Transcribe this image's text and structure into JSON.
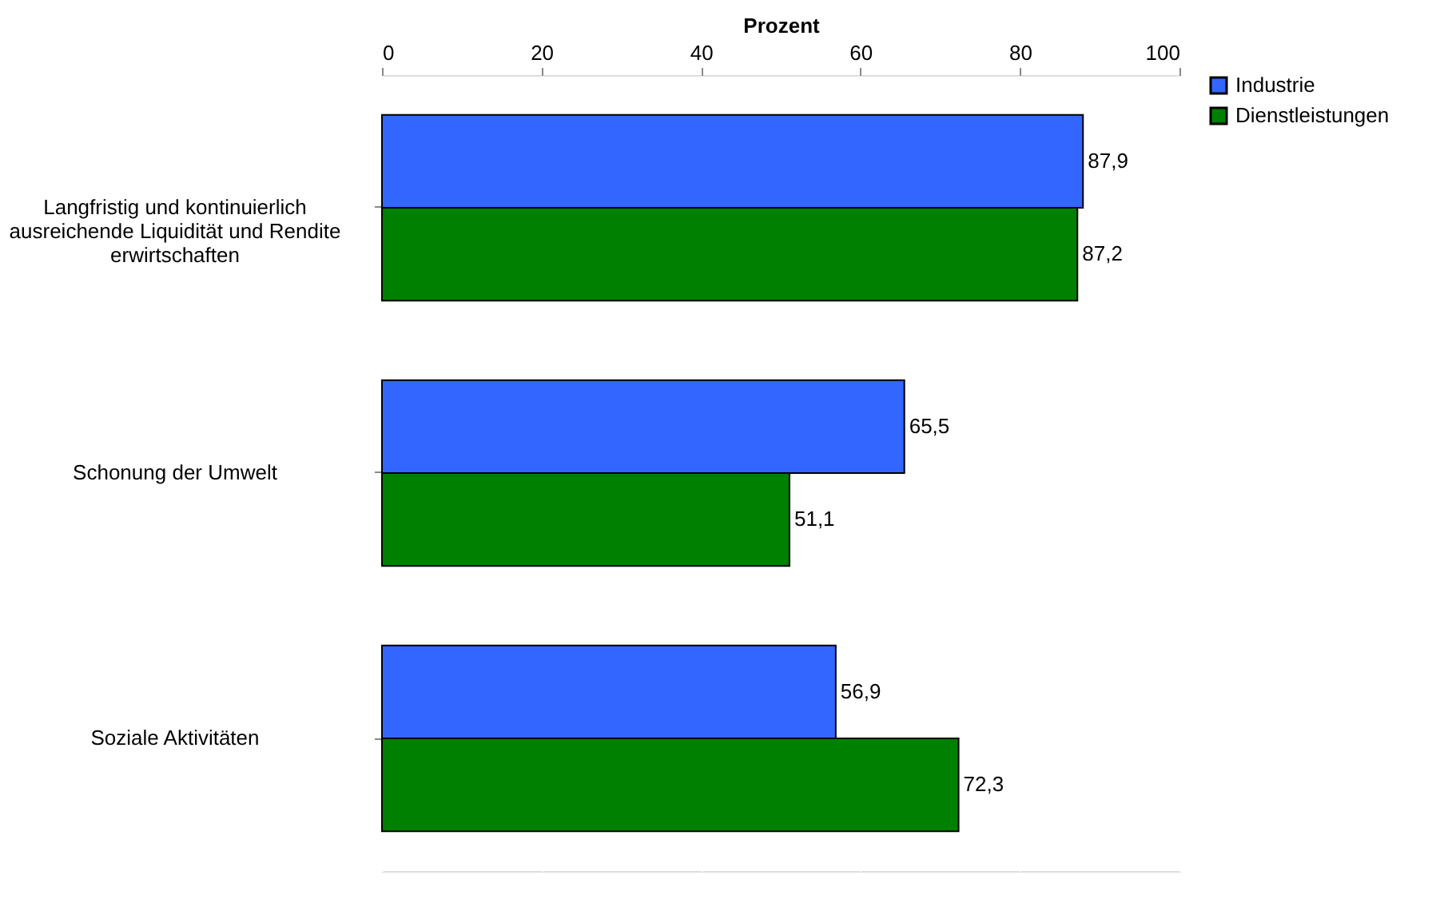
{
  "chart_data": {
    "type": "bar",
    "orientation": "horizontal",
    "xlabel": "Prozent",
    "categories": [
      "Langfristig und kontinuierlich ausreichende Liquidität und Rendite erwirtschaften",
      "Schonung der Umwelt",
      "Soziale Aktivitäten"
    ],
    "series": [
      {
        "name": "Industrie",
        "color": "#3366ff",
        "values": [
          87.9,
          65.5,
          56.9
        ],
        "value_labels": [
          "87,9",
          "65,5",
          "56,9"
        ]
      },
      {
        "name": "Dienstleistungen",
        "color": "#008000",
        "values": [
          87.2,
          51.1,
          72.3
        ],
        "value_labels": [
          "87,2",
          "51,1",
          "72,3"
        ]
      }
    ],
    "xlim": [
      0,
      100
    ],
    "xticks": [
      0,
      20,
      40,
      60,
      80,
      100
    ],
    "grid": "x",
    "legend": "right"
  }
}
